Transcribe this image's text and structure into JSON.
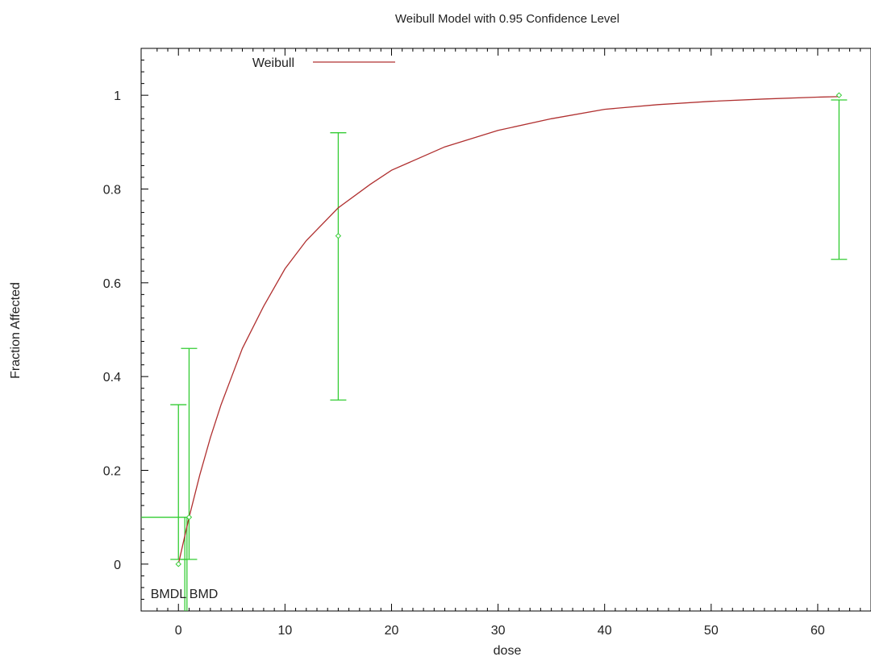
{
  "chart_data": {
    "type": "line",
    "title": "Weibull Model with 0.95 Confidence Level",
    "xlabel": "dose",
    "ylabel": "Fraction Affected",
    "xlim": [
      -3.5,
      65
    ],
    "ylim": [
      -0.1,
      1.1
    ],
    "x_ticks": [
      0,
      10,
      20,
      30,
      40,
      50,
      60
    ],
    "y_ticks": [
      0,
      0.2,
      0.4,
      0.6,
      0.8,
      1
    ],
    "grid": false,
    "legend": {
      "placement": "top-left",
      "entries": [
        {
          "label": "Weibull",
          "color": "#b03030"
        }
      ]
    },
    "model_curve": {
      "name": "Weibull",
      "color": "#b03030",
      "x": [
        0,
        0.5,
        1,
        2,
        3,
        4,
        5,
        6,
        8,
        10,
        12,
        15,
        18,
        20,
        25,
        30,
        35,
        40,
        45,
        50,
        55,
        60,
        62
      ],
      "y": [
        0,
        0.05,
        0.1,
        0.19,
        0.27,
        0.34,
        0.4,
        0.46,
        0.55,
        0.63,
        0.69,
        0.76,
        0.81,
        0.84,
        0.89,
        0.925,
        0.95,
        0.97,
        0.98,
        0.987,
        0.992,
        0.996,
        0.997
      ]
    },
    "observed": {
      "color": "#33cc33",
      "points": [
        {
          "x": 0,
          "y": 0.0,
          "lower": 0.01,
          "upper": 0.34
        },
        {
          "x": 1,
          "y": 0.1,
          "lower": 0.01,
          "upper": 0.46
        },
        {
          "x": 15,
          "y": 0.7,
          "lower": 0.35,
          "upper": 0.92
        },
        {
          "x": 62,
          "y": 1.0,
          "lower": 0.65,
          "upper": 0.99
        }
      ]
    },
    "bmr": 0.1,
    "bmd": {
      "label": "BMD",
      "x": 0.8
    },
    "bmdl": {
      "label": "BMDL",
      "x": 0.6
    }
  }
}
